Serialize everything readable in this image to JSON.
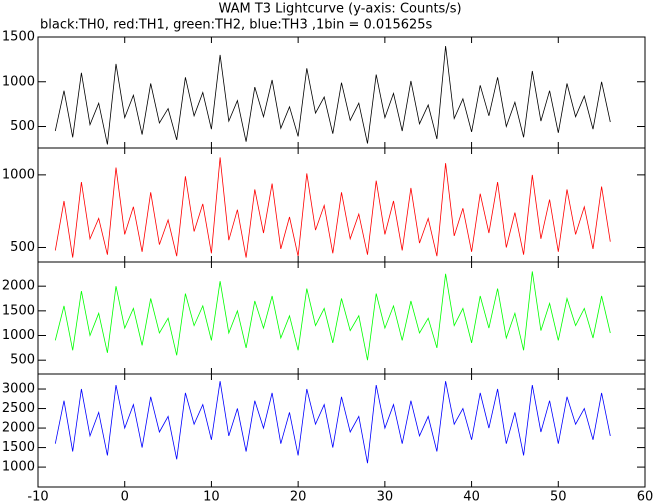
{
  "chart_data": [
    {
      "type": "line",
      "title": "WAM T3 Lightcurve (y-axis: Counts/s)",
      "subtitle": "black:TH0, red:TH1, green:TH2, blue:TH3 ,1bin = 0.015625s",
      "xlim": [
        -10,
        60
      ],
      "ylim": [
        260,
        1500
      ],
      "yticks": [
        500,
        1000,
        1500
      ],
      "x": [
        -8,
        -7,
        -6,
        -5,
        -4,
        -3,
        -2,
        -1,
        0,
        1,
        2,
        3,
        4,
        5,
        6,
        7,
        8,
        9,
        10,
        11,
        12,
        13,
        14,
        15,
        16,
        17,
        18,
        19,
        20,
        21,
        22,
        23,
        24,
        25,
        26,
        27,
        28,
        29,
        30,
        31,
        32,
        33,
        34,
        35,
        36,
        37,
        38,
        39,
        40,
        41,
        42,
        43,
        44,
        45,
        46,
        47,
        48,
        49,
        50,
        51,
        52,
        53,
        54,
        55,
        56
      ],
      "series": [
        {
          "name": "TH0",
          "color": "#000000",
          "values": [
            450,
            900,
            380,
            1100,
            520,
            760,
            300,
            1200,
            600,
            850,
            410,
            980,
            540,
            700,
            350,
            1050,
            620,
            880,
            470,
            1300,
            560,
            790,
            330,
            940,
            610,
            1020,
            480,
            720,
            390,
            1150,
            650,
            830,
            420,
            990,
            570,
            760,
            310,
            1080,
            600,
            870,
            450,
            1010,
            530,
            740,
            360,
            1400,
            590,
            810,
            440,
            960,
            620,
            1050,
            500,
            770,
            380,
            1120,
            560,
            900,
            430,
            980,
            610,
            840,
            470,
            1000,
            550
          ]
        }
      ]
    },
    {
      "type": "line",
      "xlim": [
        -10,
        60
      ],
      "ylim": [
        400,
        1185
      ],
      "yticks": [
        500,
        1000
      ],
      "x": [
        -8,
        -7,
        -6,
        -5,
        -4,
        -3,
        -2,
        -1,
        0,
        1,
        2,
        3,
        4,
        5,
        6,
        7,
        8,
        9,
        10,
        11,
        12,
        13,
        14,
        15,
        16,
        17,
        18,
        19,
        20,
        21,
        22,
        23,
        24,
        25,
        26,
        27,
        28,
        29,
        30,
        31,
        32,
        33,
        34,
        35,
        36,
        37,
        38,
        39,
        40,
        41,
        42,
        43,
        44,
        45,
        46,
        47,
        48,
        49,
        50,
        51,
        52,
        53,
        54,
        55,
        56
      ],
      "series": [
        {
          "name": "TH1",
          "color": "#ff0000",
          "values": [
            480,
            820,
            430,
            950,
            560,
            700,
            450,
            1050,
            590,
            780,
            470,
            880,
            520,
            690,
            440,
            990,
            610,
            800,
            460,
            1120,
            550,
            760,
            430,
            900,
            600,
            940,
            490,
            710,
            440,
            1010,
            620,
            790,
            460,
            880,
            560,
            730,
            450,
            960,
            590,
            820,
            480,
            910,
            530,
            700,
            440,
            1080,
            580,
            770,
            470,
            870,
            600,
            950,
            500,
            740,
            450,
            1000,
            560,
            830,
            470,
            900,
            590,
            780,
            490,
            920,
            540
          ]
        }
      ]
    },
    {
      "type": "line",
      "xlim": [
        -10,
        60
      ],
      "ylim": [
        220,
        2490
      ],
      "yticks": [
        500,
        1000,
        1500,
        2000
      ],
      "x": [
        -8,
        -7,
        -6,
        -5,
        -4,
        -3,
        -2,
        -1,
        0,
        1,
        2,
        3,
        4,
        5,
        6,
        7,
        8,
        9,
        10,
        11,
        12,
        13,
        14,
        15,
        16,
        17,
        18,
        19,
        20,
        21,
        22,
        23,
        24,
        25,
        26,
        27,
        28,
        29,
        30,
        31,
        32,
        33,
        34,
        35,
        36,
        37,
        38,
        39,
        40,
        41,
        42,
        43,
        44,
        45,
        46,
        47,
        48,
        49,
        50,
        51,
        52,
        53,
        54,
        55,
        56
      ],
      "series": [
        {
          "name": "TH2",
          "color": "#00ff00",
          "values": [
            900,
            1600,
            700,
            1900,
            1000,
            1450,
            650,
            2000,
            1150,
            1550,
            800,
            1750,
            1050,
            1350,
            600,
            1850,
            1200,
            1600,
            900,
            2100,
            1050,
            1500,
            750,
            1700,
            1150,
            1800,
            950,
            1400,
            700,
            1950,
            1200,
            1550,
            850,
            1750,
            1100,
            1400,
            500,
            1850,
            1150,
            1600,
            900,
            1700,
            1050,
            1350,
            750,
            2250,
            1200,
            1550,
            850,
            1800,
            1150,
            1950,
            950,
            1450,
            700,
            2300,
            1100,
            1650,
            900,
            1750,
            1200,
            1550,
            950,
            1800,
            1050
          ]
        }
      ]
    },
    {
      "type": "line",
      "xlim": [
        -10,
        60
      ],
      "ylim": [
        490,
        3385
      ],
      "yticks": [
        1000,
        1500,
        2000,
        2500,
        3000
      ],
      "xticks": [
        -10,
        0,
        10,
        20,
        30,
        40,
        50,
        60
      ],
      "x": [
        -8,
        -7,
        -6,
        -5,
        -4,
        -3,
        -2,
        -1,
        0,
        1,
        2,
        3,
        4,
        5,
        6,
        7,
        8,
        9,
        10,
        11,
        12,
        13,
        14,
        15,
        16,
        17,
        18,
        19,
        20,
        21,
        22,
        23,
        24,
        25,
        26,
        27,
        28,
        29,
        30,
        31,
        32,
        33,
        34,
        35,
        36,
        37,
        38,
        39,
        40,
        41,
        42,
        43,
        44,
        45,
        46,
        47,
        48,
        49,
        50,
        51,
        52,
        53,
        54,
        55,
        56
      ],
      "series": [
        {
          "name": "TH3",
          "color": "#0000ff",
          "values": [
            1600,
            2700,
            1400,
            3000,
            1800,
            2400,
            1300,
            3100,
            2000,
            2600,
            1500,
            2800,
            1900,
            2300,
            1200,
            2900,
            2100,
            2600,
            1700,
            3200,
            1800,
            2500,
            1400,
            2700,
            2000,
            2900,
            1600,
            2400,
            1300,
            3000,
            2100,
            2600,
            1500,
            2800,
            1900,
            2300,
            1100,
            3100,
            2000,
            2600,
            1600,
            2700,
            1800,
            2300,
            1400,
            3200,
            2100,
            2500,
            1700,
            2900,
            2000,
            3000,
            1600,
            2400,
            1300,
            3100,
            1900,
            2700,
            1600,
            2800,
            2100,
            2500,
            1700,
            2900,
            1800
          ]
        }
      ]
    }
  ]
}
